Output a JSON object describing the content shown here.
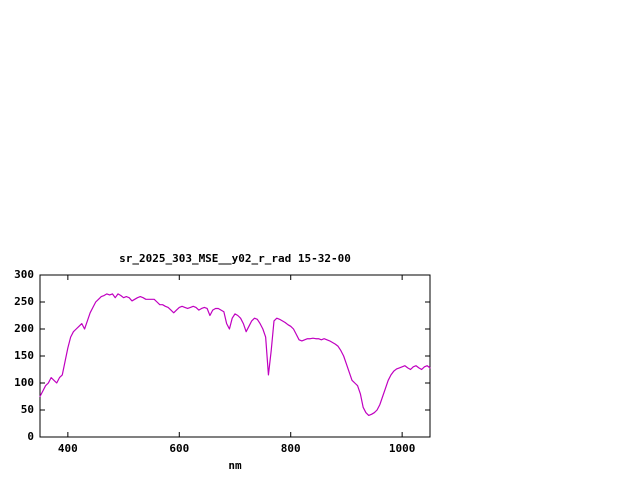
{
  "chart_data": {
    "type": "line",
    "title": "sr_2025_303_MSE__y02_r_rad 15-32-00",
    "xlabel": "nm",
    "ylabel": "",
    "xlim": [
      350,
      1050
    ],
    "ylim": [
      0,
      300
    ],
    "x_ticks": [
      400,
      600,
      800,
      1000
    ],
    "y_ticks": [
      0,
      50,
      100,
      150,
      200,
      250,
      300
    ],
    "grid": false,
    "legend": "none",
    "line_color": "#c000c0",
    "axis_color": "#000000",
    "series": [
      {
        "name": "r_rad",
        "x_start": 350,
        "x_step": 5,
        "values": [
          75,
          85,
          95,
          100,
          110,
          105,
          100,
          110,
          115,
          140,
          165,
          185,
          195,
          200,
          205,
          210,
          200,
          215,
          230,
          240,
          250,
          255,
          260,
          262,
          265,
          263,
          265,
          258,
          265,
          262,
          258,
          260,
          258,
          252,
          255,
          258,
          260,
          258,
          255,
          255,
          255,
          255,
          250,
          245,
          245,
          242,
          240,
          235,
          230,
          235,
          240,
          242,
          240,
          238,
          240,
          242,
          240,
          235,
          238,
          240,
          238,
          225,
          235,
          238,
          238,
          235,
          232,
          210,
          200,
          220,
          228,
          225,
          220,
          210,
          195,
          205,
          215,
          220,
          218,
          210,
          200,
          185,
          115,
          160,
          215,
          220,
          218,
          215,
          212,
          208,
          205,
          200,
          190,
          180,
          178,
          180,
          182,
          182,
          183,
          182,
          182,
          180,
          182,
          180,
          178,
          175,
          172,
          168,
          160,
          150,
          135,
          120,
          105,
          100,
          95,
          80,
          55,
          45,
          40,
          42,
          45,
          50,
          60,
          75,
          90,
          105,
          115,
          122,
          126,
          128,
          130,
          132,
          128,
          125,
          130,
          132,
          128,
          125,
          130,
          132,
          128
        ]
      }
    ]
  }
}
